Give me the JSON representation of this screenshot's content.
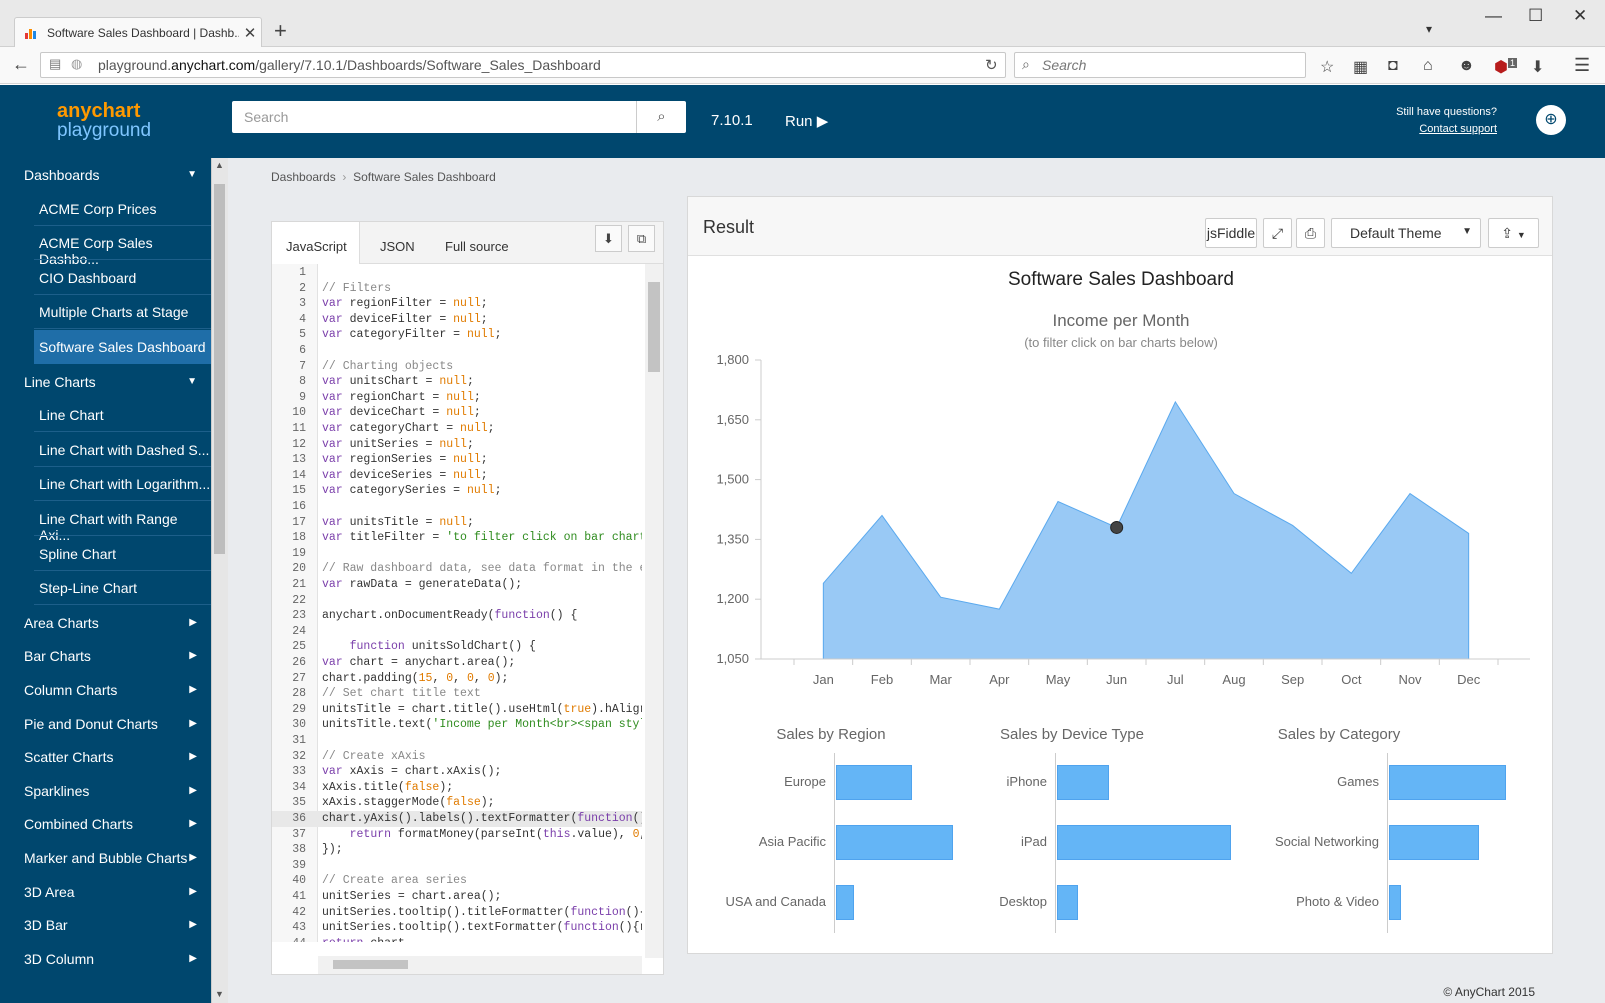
{
  "browser": {
    "tab_title": "Software Sales Dashboard | Dashb...",
    "url_prefix": "playground.",
    "url_domain": "anychart.com",
    "url_path": "/gallery/7.10.1/Dashboards/Software_Sales_Dashboard",
    "search_placeholder": "Search",
    "addon_badge": "1"
  },
  "app": {
    "logo_top": "anychart",
    "logo_bottom": "playground",
    "search_placeholder": "Search",
    "version": "7.10.1",
    "run_label": "Run",
    "questions": "Still have questions?",
    "contact": "Contact support"
  },
  "sidebar": {
    "items": [
      {
        "label": "Dashboards",
        "level": 0,
        "expanded": true
      },
      {
        "label": "ACME Corp Prices",
        "level": 1
      },
      {
        "label": "ACME Corp Sales Dashbo...",
        "level": 1
      },
      {
        "label": "CIO Dashboard",
        "level": 1
      },
      {
        "label": "Multiple Charts at Stage",
        "level": 1
      },
      {
        "label": "Software Sales Dashboard",
        "level": 1,
        "selected": true
      },
      {
        "label": "Line Charts",
        "level": 0,
        "expanded": true
      },
      {
        "label": "Line Chart",
        "level": 1
      },
      {
        "label": "Line Chart with Dashed S...",
        "level": 1
      },
      {
        "label": "Line Chart with Logarithm...",
        "level": 1
      },
      {
        "label": "Line Chart with Range Axi...",
        "level": 1
      },
      {
        "label": "Spline Chart",
        "level": 1
      },
      {
        "label": "Step-Line Chart",
        "level": 1
      },
      {
        "label": "Area Charts",
        "level": 0
      },
      {
        "label": "Bar Charts",
        "level": 0
      },
      {
        "label": "Column Charts",
        "level": 0
      },
      {
        "label": "Pie and Donut Charts",
        "level": 0
      },
      {
        "label": "Scatter Charts",
        "level": 0
      },
      {
        "label": "Sparklines",
        "level": 0
      },
      {
        "label": "Combined Charts",
        "level": 0
      },
      {
        "label": "Marker and Bubble Charts",
        "level": 0
      },
      {
        "label": "3D Area",
        "level": 0
      },
      {
        "label": "3D Bar",
        "level": 0
      },
      {
        "label": "3D Column",
        "level": 0
      }
    ]
  },
  "breadcrumb": {
    "parent": "Dashboards",
    "separator": "›",
    "current": "Software Sales Dashboard"
  },
  "editor": {
    "tabs": [
      "JavaScript",
      "JSON",
      "Full source"
    ],
    "active_tab": "JavaScript",
    "lines": [
      "",
      "// Filters",
      "var regionFilter = null;",
      "var deviceFilter = null;",
      "var categoryFilter = null;",
      "",
      "// Charting objects",
      "var unitsChart = null;",
      "var regionChart = null;",
      "var deviceChart = null;",
      "var categoryChart = null;",
      "var unitSeries = null;",
      "var regionSeries = null;",
      "var deviceSeries = null;",
      "var categorySeries = null;",
      "",
      "var unitsTitle = null;",
      "var titleFilter = 'to filter click on bar chart",
      "",
      "// Raw dashboard data, see data format in the e",
      "var rawData = generateData();",
      "",
      "anychart.onDocumentReady(function() {",
      "",
      "    function unitsSoldChart() {",
      "var chart = anychart.area();",
      "chart.padding(15, 0, 0, 0);",
      "// Set chart title text",
      "unitsTitle = chart.title().useHtml(true).hAligr",
      "unitsTitle.text('Income per Month<br><span styl",
      "",
      "// Create xAxis",
      "var xAxis = chart.xAxis();",
      "xAxis.title(false);",
      "xAxis.staggerMode(false);",
      "chart.yAxis().labels().textFormatter(function()",
      "    return formatMoney(parseInt(this.value), 0,",
      "});",
      "",
      "// Create area series",
      "unitSeries = chart.area();",
      "unitSeries.tooltip().titleFormatter(function(){",
      "unitSeries.tooltip().textFormatter(function(){r",
      "return chart",
      ""
    ]
  },
  "result": {
    "title": "Result",
    "jsfiddle": "jsFiddle",
    "theme": "Default Theme",
    "dashboard_title": "Software Sales Dashboard",
    "copyright": "© AnyChart 2015"
  },
  "chart_data": [
    {
      "type": "area",
      "title": "Income per Month",
      "subtitle": "(to filter click on bar charts below)",
      "categories": [
        "Jan",
        "Feb",
        "Mar",
        "Apr",
        "May",
        "Jun",
        "Jul",
        "Aug",
        "Sep",
        "Oct",
        "Nov",
        "Dec"
      ],
      "values": [
        1240,
        1410,
        1205,
        1175,
        1445,
        1380,
        1695,
        1465,
        1385,
        1265,
        1465,
        1365
      ],
      "highlighted_point": "Jun",
      "ylim": [
        1050,
        1800
      ],
      "yticks": [
        "1,050",
        "1,200",
        "1,350",
        "1,500",
        "1,650",
        "1,800"
      ],
      "color": "#99c9f5"
    },
    {
      "type": "bar",
      "title": "Sales by Region",
      "categories": [
        "Europe",
        "Asia Pacific",
        "USA and Canada"
      ],
      "values": [
        0.65,
        1.0,
        0.15
      ],
      "color": "#64b5f6"
    },
    {
      "type": "bar",
      "title": "Sales by Device Type",
      "categories": [
        "iPhone",
        "iPad",
        "Desktop"
      ],
      "values": [
        0.3,
        1.0,
        0.12
      ],
      "color": "#64b5f6"
    },
    {
      "type": "bar",
      "title": "Sales by Category",
      "categories": [
        "Games",
        "Social Networking",
        "Photo & Video"
      ],
      "values": [
        1.0,
        0.77,
        0.1
      ],
      "color": "#64b5f6"
    }
  ]
}
